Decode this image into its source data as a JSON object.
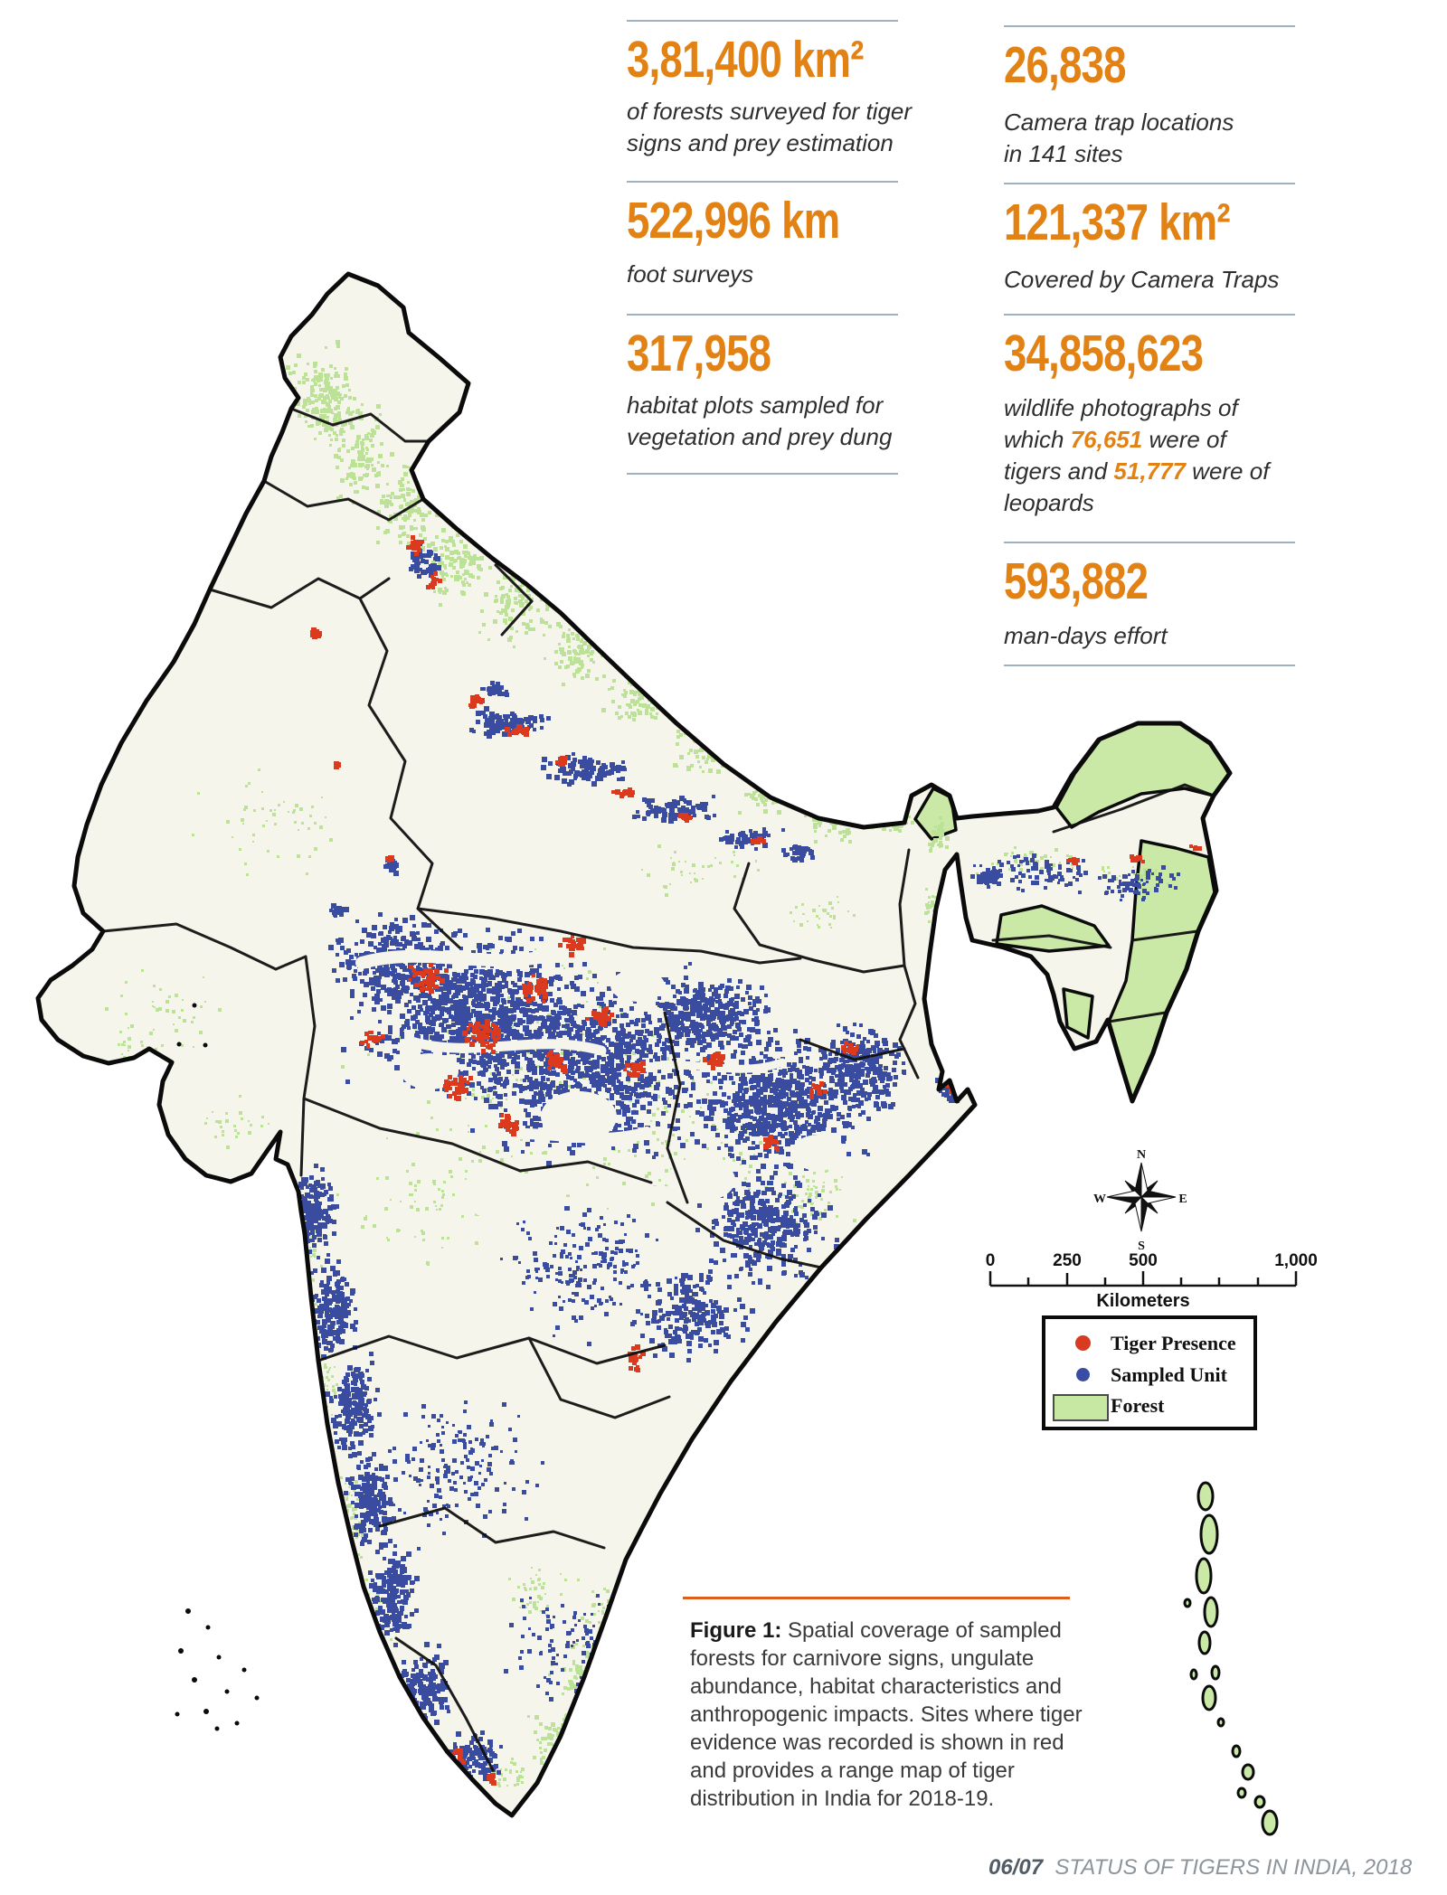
{
  "stats": {
    "left": [
      {
        "value": "3,81,400 km²",
        "desc": "of forests surveyed for tiger\nsigns and prey estimation"
      },
      {
        "value": "522,996 km",
        "desc": "foot surveys"
      },
      {
        "value": "317,958",
        "desc": "habitat plots sampled for\nvegetation and prey dung"
      }
    ],
    "right": [
      {
        "value": "26,838",
        "desc": " Camera trap locations\nin 141 sites"
      },
      {
        "value": "121,337 km²",
        "desc": "Covered by Camera Traps"
      },
      {
        "value": "34,858,623",
        "desc_parts": [
          {
            "text": "wildlife photographs of which "
          },
          {
            "text": "76,651",
            "highlight": true
          },
          {
            "text": " were of tigers and "
          },
          {
            "text": "51,777",
            "highlight": true
          },
          {
            "text": " were of leopards"
          }
        ]
      },
      {
        "value": "593,882",
        "desc": "man-days effort"
      }
    ]
  },
  "map": {
    "legend": {
      "items": [
        {
          "label": "Tiger Presence",
          "color": "#D93B21",
          "shape": "dot"
        },
        {
          "label": "Sampled Unit",
          "color": "#3B4DA3",
          "shape": "dot"
        },
        {
          "label": "Forest",
          "color": "#C7E8A2",
          "shape": "rect"
        }
      ]
    },
    "scalebar": {
      "ticks": [
        "0",
        "250",
        "500",
        "1,000"
      ],
      "unit": "Kilometers"
    },
    "compass": {
      "n": "N",
      "e": "E",
      "s": "S",
      "w": "W"
    },
    "colors": {
      "land": "#F5F5EB",
      "forest": "#BCE297",
      "sampled": "#3A4CA0",
      "tiger": "#DB3A1E",
      "boundary": "#0B0B0B"
    }
  },
  "caption": {
    "label": "Figure 1:",
    "text": " Spatial coverage of sampled forests for carnivore signs, ungulate abundance, habitat characteristics and anthropogenic impacts. Sites where tiger evidence was recorded is shown in red and provides a range map of tiger distribution in India for 2018-19."
  },
  "footer": {
    "page": "06/07",
    "title": "STATUS OF TIGERS IN INDIA, 2018"
  },
  "accent": {
    "orange": "#E28214",
    "rule": "#9FB0BE",
    "caption_rule": "#DD5F1E"
  }
}
